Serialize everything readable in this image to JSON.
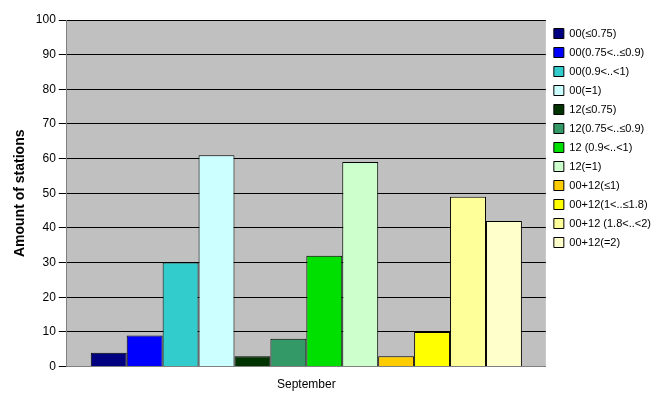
{
  "chart_data": {
    "type": "bar",
    "y_label": "Amount of stations",
    "categories": [
      "September"
    ],
    "series": [
      {
        "name": "00(≤0.75)",
        "color": "#000080",
        "values": [
          4
        ]
      },
      {
        "name": "00(0.75<..≤0.9)",
        "color": "#0000ff",
        "values": [
          9
        ]
      },
      {
        "name": "00(0.9<..<1)",
        "color": "#33cccc",
        "values": [
          30
        ]
      },
      {
        "name": "00(=1)",
        "color": "#ccffff",
        "values": [
          61
        ]
      },
      {
        "name": "12(≤0.75)",
        "color": "#003300",
        "values": [
          3
        ]
      },
      {
        "name": "12(0.75<..≤0.9)",
        "color": "#339966",
        "values": [
          8
        ]
      },
      {
        "name": "12 (0.9<..<1)",
        "color": "#00e000",
        "values": [
          32
        ]
      },
      {
        "name": "12(=1)",
        "color": "#ccffcc",
        "values": [
          59
        ]
      },
      {
        "name": "00+12(≤1)",
        "color": "#ffcc00",
        "values": [
          3
        ]
      },
      {
        "name": "00+12(1<..≤1.8)",
        "color": "#ffff00",
        "values": [
          10
        ]
      },
      {
        "name": "00+12 (1.8<..<2)",
        "color": "#ffff99",
        "values": [
          49
        ]
      },
      {
        "name": "00+12(=2)",
        "color": "#ffffcc",
        "values": [
          42
        ]
      }
    ],
    "ylim": [
      0,
      100
    ],
    "yticks": [
      0,
      10,
      20,
      30,
      40,
      50,
      60,
      70,
      80,
      90,
      100
    ],
    "grid": true,
    "legend": "right"
  }
}
